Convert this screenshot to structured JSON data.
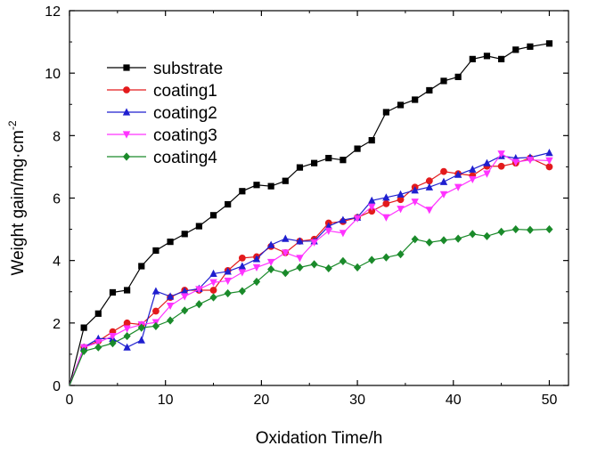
{
  "chart_data": {
    "type": "line",
    "title": "",
    "xlabel": "Oxidation Time/h",
    "ylabel_main": "Weight gain/mg·cm",
    "ylabel_sup": "-2",
    "xlim": [
      0,
      52
    ],
    "ylim": [
      0,
      12
    ],
    "xticks": [
      0,
      10,
      20,
      30,
      40,
      50
    ],
    "yticks": [
      0,
      2,
      4,
      6,
      8,
      10,
      12
    ],
    "grid": false,
    "legend_position": "top-left",
    "series": [
      {
        "name": "substrate",
        "color": "#000000",
        "marker": "square",
        "x": [
          0,
          1.5,
          3,
          4.5,
          6,
          7.5,
          9,
          10.5,
          12,
          13.5,
          15,
          16.5,
          18,
          19.5,
          21,
          22.5,
          24,
          25.5,
          27,
          28.5,
          30,
          31.5,
          33,
          34.5,
          36,
          37.5,
          39,
          40.5,
          42,
          43.5,
          45,
          46.5,
          48,
          50
        ],
        "y": [
          0,
          1.85,
          2.3,
          2.98,
          3.05,
          3.82,
          4.32,
          4.6,
          4.85,
          5.1,
          5.45,
          5.8,
          6.22,
          6.42,
          6.38,
          6.55,
          6.98,
          7.12,
          7.28,
          7.22,
          7.58,
          7.85,
          8.75,
          8.98,
          9.15,
          9.45,
          9.75,
          9.88,
          10.45,
          10.55,
          10.45,
          10.75,
          10.85,
          10.95
        ]
      },
      {
        "name": "coating1",
        "color": "#e31a1c",
        "marker": "circle",
        "x": [
          0,
          1.5,
          3,
          4.5,
          6,
          7.5,
          9,
          10.5,
          12,
          13.5,
          15,
          16.5,
          18,
          19.5,
          21,
          22.5,
          24,
          25.5,
          27,
          28.5,
          30,
          31.5,
          33,
          34.5,
          36,
          37.5,
          39,
          40.5,
          42,
          43.5,
          45,
          46.5,
          48,
          50
        ],
        "y": [
          0,
          1.22,
          1.42,
          1.72,
          2.0,
          1.95,
          2.38,
          2.82,
          3.05,
          3.05,
          3.05,
          3.68,
          4.08,
          4.12,
          4.45,
          4.25,
          4.62,
          4.68,
          5.2,
          5.25,
          5.38,
          5.58,
          5.82,
          5.95,
          6.35,
          6.55,
          6.85,
          6.78,
          6.72,
          7.02,
          7.02,
          7.12,
          7.28,
          7.0
        ]
      },
      {
        "name": "coating2",
        "color": "#1f1fcf",
        "marker": "triangle-up",
        "x": [
          0,
          1.5,
          3,
          4.5,
          6,
          7.5,
          9,
          10.5,
          12,
          13.5,
          15,
          16.5,
          18,
          19.5,
          21,
          22.5,
          24,
          25.5,
          27,
          28.5,
          30,
          31.5,
          33,
          34.5,
          36,
          37.5,
          39,
          40.5,
          42,
          43.5,
          45,
          46.5,
          48,
          50
        ],
        "y": [
          0,
          1.22,
          1.5,
          1.5,
          1.22,
          1.45,
          3.02,
          2.85,
          3.02,
          3.1,
          3.58,
          3.65,
          3.82,
          4.05,
          4.5,
          4.7,
          4.62,
          4.62,
          5.1,
          5.3,
          5.38,
          5.92,
          6.02,
          6.12,
          6.25,
          6.35,
          6.52,
          6.75,
          6.92,
          7.12,
          7.35,
          7.28,
          7.3,
          7.45
        ]
      },
      {
        "name": "coating3",
        "color": "#ff33ff",
        "marker": "triangle-down",
        "x": [
          0,
          1.5,
          3,
          4.5,
          6,
          7.5,
          9,
          10.5,
          12,
          13.5,
          15,
          16.5,
          18,
          19.5,
          21,
          22.5,
          24,
          25.5,
          27,
          28.5,
          30,
          31.5,
          33,
          34.5,
          36,
          37.5,
          39,
          40.5,
          42,
          43.5,
          45,
          46.5,
          48,
          50
        ],
        "y": [
          0,
          1.22,
          1.38,
          1.58,
          1.82,
          1.95,
          2.02,
          2.55,
          2.85,
          3.08,
          3.3,
          3.35,
          3.62,
          3.78,
          3.95,
          4.25,
          4.08,
          4.58,
          4.95,
          4.88,
          5.35,
          5.72,
          5.38,
          5.65,
          5.88,
          5.62,
          6.12,
          6.35,
          6.6,
          6.78,
          7.42,
          7.15,
          7.22,
          7.2
        ]
      },
      {
        "name": "coating4",
        "color": "#1a8a2a",
        "marker": "diamond",
        "x": [
          0,
          1.5,
          3,
          4.5,
          6,
          7.5,
          9,
          10.5,
          12,
          13.5,
          15,
          16.5,
          18,
          19.5,
          21,
          22.5,
          24,
          25.5,
          27,
          28.5,
          30,
          31.5,
          33,
          34.5,
          36,
          37.5,
          39,
          40.5,
          42,
          43.5,
          45,
          46.5,
          48,
          50
        ],
        "y": [
          0,
          1.1,
          1.22,
          1.35,
          1.58,
          1.85,
          1.9,
          2.08,
          2.4,
          2.6,
          2.82,
          2.95,
          3.02,
          3.32,
          3.72,
          3.6,
          3.78,
          3.88,
          3.75,
          3.98,
          3.78,
          4.02,
          4.1,
          4.2,
          4.68,
          4.58,
          4.65,
          4.7,
          4.85,
          4.78,
          4.92,
          5.0,
          4.98,
          5.0
        ]
      }
    ]
  }
}
